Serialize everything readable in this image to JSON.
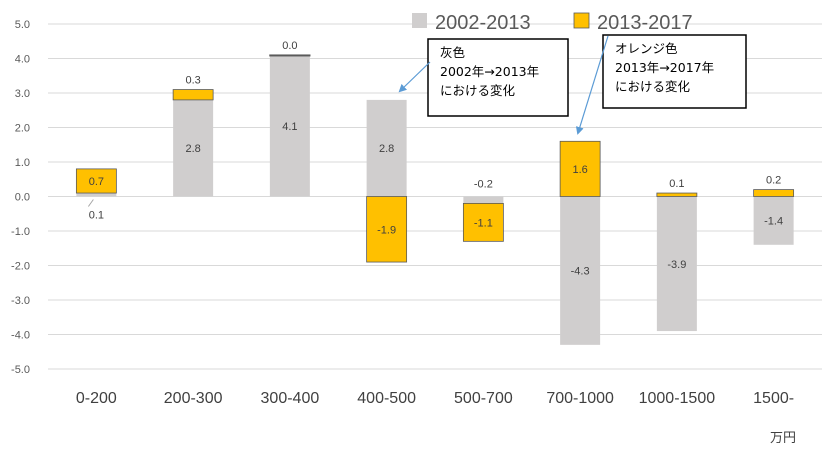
{
  "chart_data": {
    "type": "bar",
    "stacked": true,
    "categories": [
      "0-200",
      "200-300",
      "300-400",
      "400-500",
      "500-700",
      "700-1000",
      "1000-1500",
      "1500-"
    ],
    "series": [
      {
        "name": "2002-2013",
        "values": [
          0.1,
          2.8,
          4.1,
          2.8,
          -0.2,
          -4.3,
          -3.9,
          -1.4
        ],
        "color": "#d0cece"
      },
      {
        "name": "2013-2017",
        "values": [
          0.7,
          0.3,
          0.0,
          -1.9,
          -1.1,
          1.6,
          0.1,
          0.2
        ],
        "color": "#ffc000"
      }
    ],
    "ylim": [
      -5,
      5
    ],
    "yticks": [
      "5.0",
      "4.0",
      "3.0",
      "2.0",
      "1.0",
      "0.0",
      "-1.0",
      "-2.0",
      "-3.0",
      "-4.0",
      "-5.0"
    ],
    "gridlines": true,
    "legend_position": "top",
    "unit_label": "万円",
    "data_labels": {
      "series0": [
        "0.1",
        "2.8",
        "4.1",
        "2.8",
        "-0.2",
        "-4.3",
        "-3.9",
        "-1.4"
      ],
      "series1": [
        "0.7",
        "0.3",
        "0.0",
        "-1.9",
        "-1.1",
        "1.6",
        "0.1",
        "0.2"
      ]
    },
    "annotations": [
      {
        "lines": [
          "灰色",
          "2002年→2013年",
          "における変化"
        ]
      },
      {
        "lines": [
          "オレンジ色",
          "2013年→2017年",
          "における変化"
        ]
      }
    ]
  }
}
